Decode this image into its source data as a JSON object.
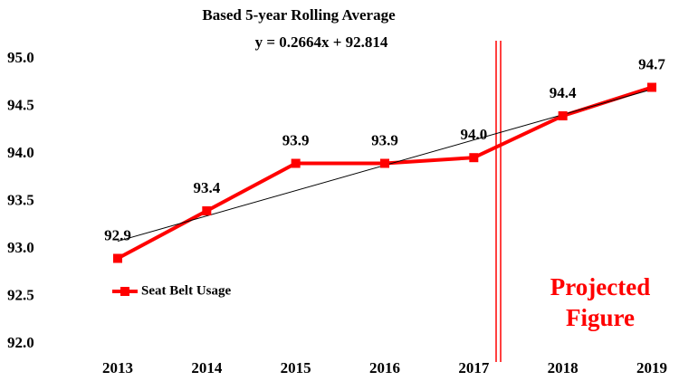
{
  "chart_data": {
    "type": "line",
    "title": "Based 5-year Rolling Average",
    "subtitle": "y = 0.2664x + 92.814",
    "categories": [
      "2013",
      "2014",
      "2015",
      "2016",
      "2017",
      "2018",
      "2019"
    ],
    "series": [
      {
        "name": "Seat Belt Usage",
        "color": "#ff0000",
        "values": [
          92.9,
          93.4,
          93.9,
          93.9,
          93.96,
          94.4,
          94.7
        ],
        "value_labels": [
          "92.9",
          "93.4",
          "93.9",
          "93.9",
          "94.0",
          "94.4",
          "94.7"
        ]
      }
    ],
    "trendline": {
      "slope": 0.2664,
      "intercept": 92.814,
      "color": "#000000"
    },
    "ylim": [
      92,
      95
    ],
    "yticks": [
      {
        "value": 92,
        "label": "92.0"
      },
      92.5,
      {
        "value": 93,
        "label": "93.0"
      },
      93.5,
      {
        "value": 94,
        "label": "94.0"
      },
      94.5,
      {
        "value": 95,
        "label": "95.0"
      }
    ],
    "annotation": [
      "Projected",
      "Figure"
    ],
    "annotation_color": "#ff0000",
    "legend": "left"
  }
}
